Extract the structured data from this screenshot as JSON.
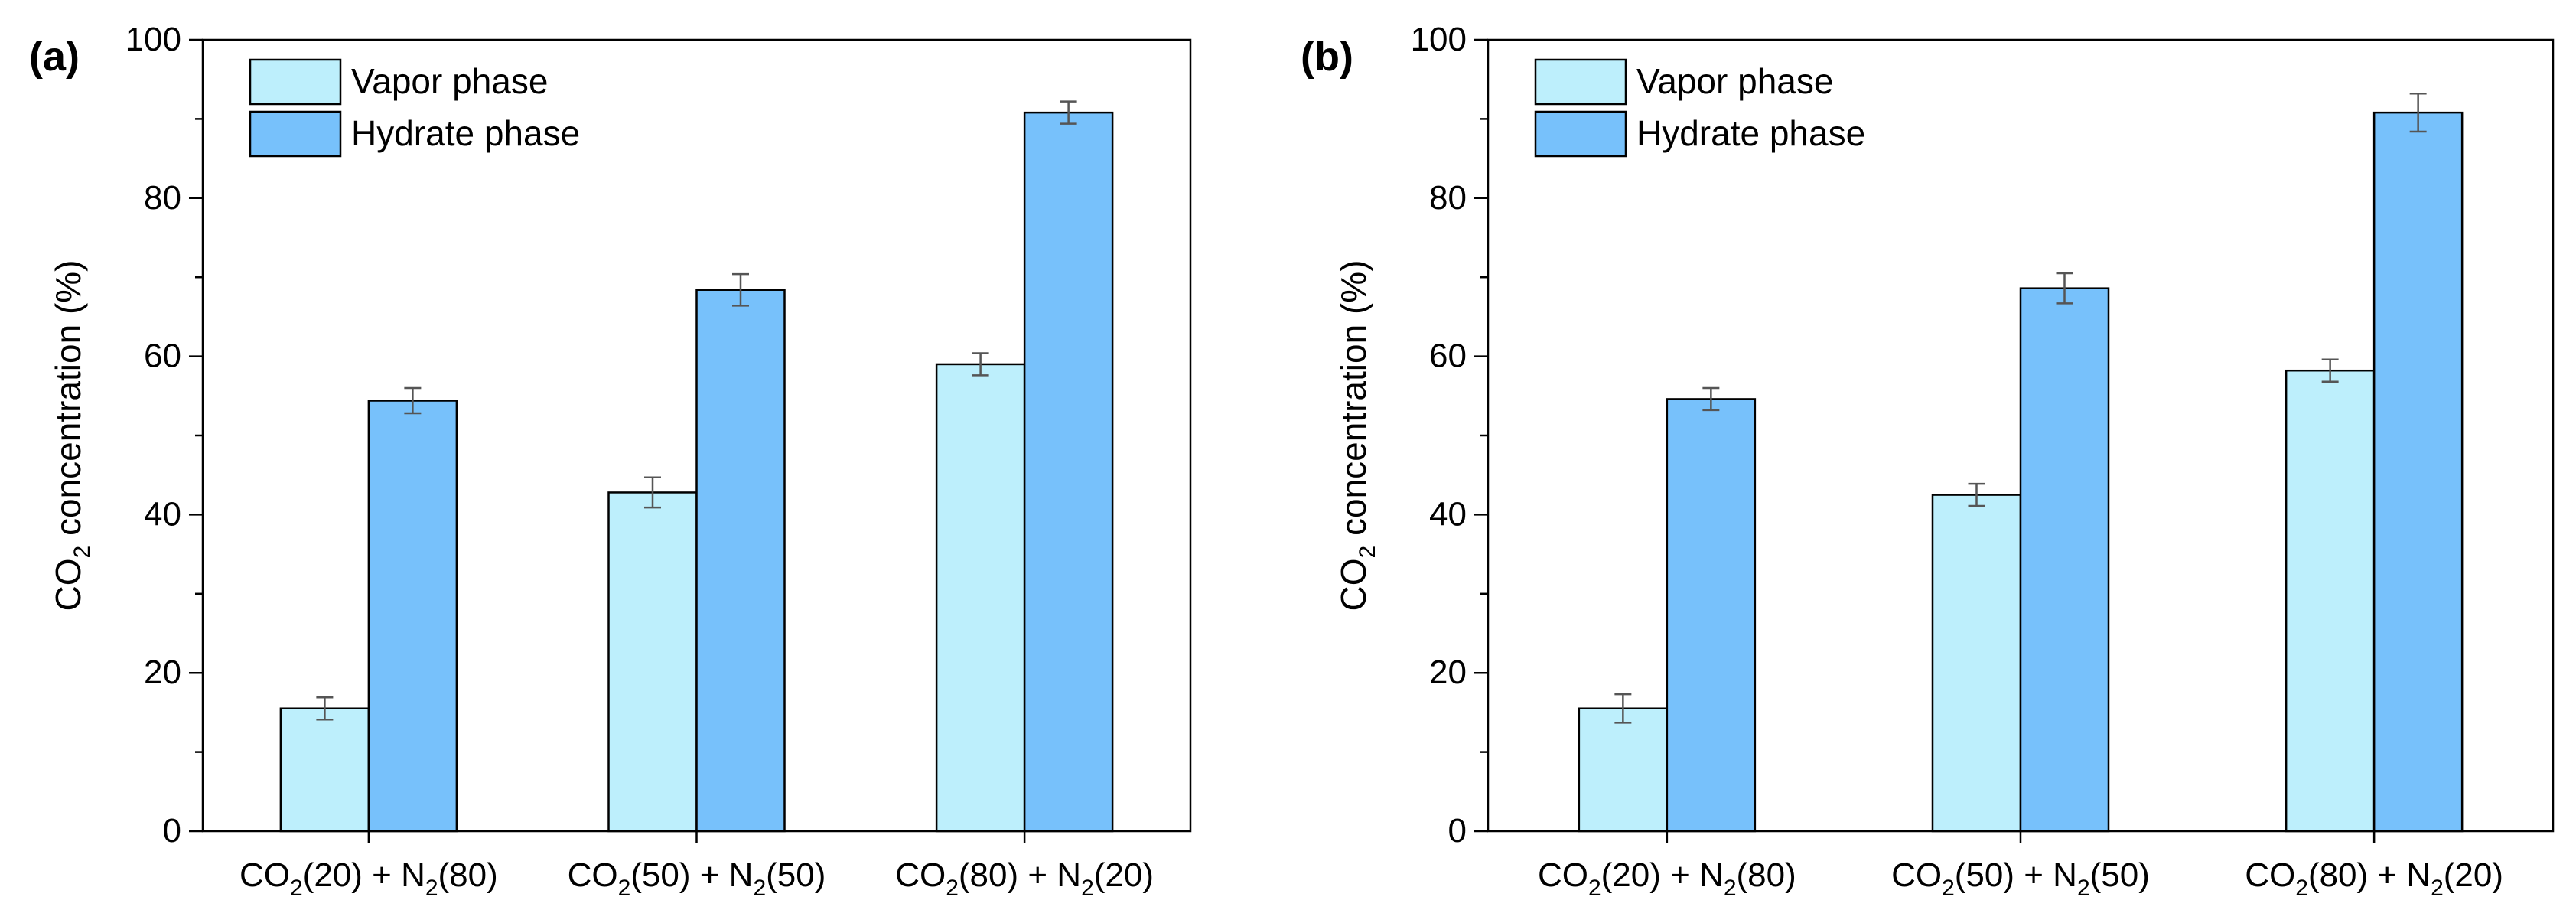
{
  "figure": {
    "panels": [
      "(a)",
      "(b)"
    ]
  },
  "colors": {
    "vapor": "#BDEFFC",
    "hydrate": "#77C1FB",
    "axis": "#000000",
    "error": "#555555"
  },
  "chart_data": [
    {
      "panel_label": "(a)",
      "type": "bar",
      "categories": [
        {
          "a": "CO",
          "a_sub": "2",
          "b": "(20) + N",
          "b_sub": "2",
          "c": "(80)"
        },
        {
          "a": "CO",
          "a_sub": "2",
          "b": "(50) + N",
          "b_sub": "2",
          "c": "(50)"
        },
        {
          "a": "CO",
          "a_sub": "2",
          "b": "(80) + N",
          "b_sub": "2",
          "c": "(20)"
        }
      ],
      "series": [
        {
          "name": "Vapor phase",
          "values": [
            15.5,
            42.8,
            59.0
          ],
          "errors": [
            1.4,
            1.9,
            1.4
          ]
        },
        {
          "name": "Hydrate phase",
          "values": [
            54.4,
            68.4,
            90.8
          ],
          "errors": [
            1.6,
            2.0,
            1.4
          ]
        }
      ],
      "ylabel": {
        "a": "CO",
        "a_sub": "2",
        "b": " concentration (%)"
      },
      "xlabel": "",
      "ylim": [
        0,
        100
      ],
      "yticks": [
        "0",
        "20",
        "40",
        "60",
        "80",
        "100"
      ],
      "legend": "top-left"
    },
    {
      "panel_label": "(b)",
      "type": "bar",
      "categories": [
        {
          "a": "CO",
          "a_sub": "2",
          "b": "(20) + N",
          "b_sub": "2",
          "c": "(80)"
        },
        {
          "a": "CO",
          "a_sub": "2",
          "b": "(50) + N",
          "b_sub": "2",
          "c": "(50)"
        },
        {
          "a": "CO",
          "a_sub": "2",
          "b": "(80) + N",
          "b_sub": "2",
          "c": "(20)"
        }
      ],
      "series": [
        {
          "name": "Vapor phase",
          "values": [
            15.5,
            42.5,
            58.2
          ],
          "errors": [
            1.8,
            1.4,
            1.4
          ]
        },
        {
          "name": "Hydrate phase",
          "values": [
            54.6,
            68.6,
            90.8
          ],
          "errors": [
            1.4,
            1.9,
            2.4
          ]
        }
      ],
      "ylabel": {
        "a": "CO",
        "a_sub": "2",
        "b": " concentration (%)"
      },
      "xlabel": "",
      "ylim": [
        0,
        100
      ],
      "yticks": [
        "0",
        "20",
        "40",
        "60",
        "80",
        "100"
      ],
      "legend": "top-left"
    }
  ]
}
